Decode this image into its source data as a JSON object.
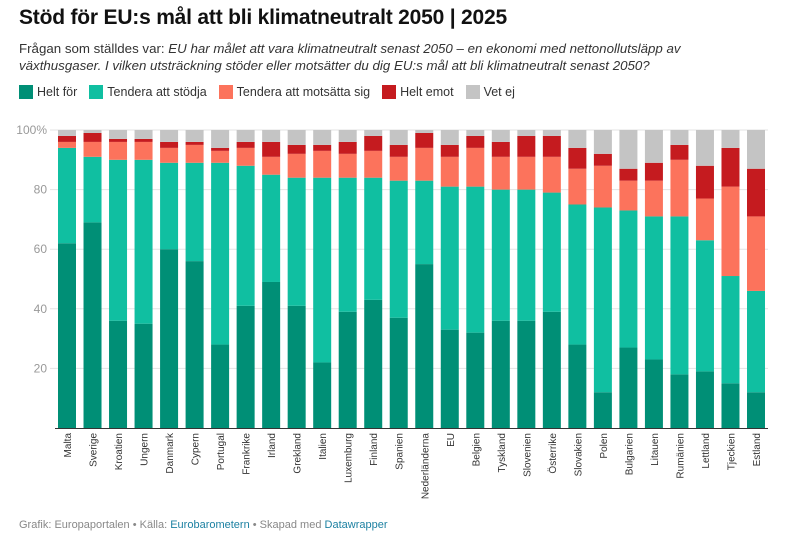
{
  "title": "Stöd för EU:s mål att bli klimatneutralt 2050 | 2025",
  "subtitle": {
    "prefix": "Frågan som ställdes var: ",
    "question": "EU har målet att vara klimatneutralt senast 2050 – en ekonomi med nettonollutsläpp av växthusgaser. I vilken utsträckning stöder eller motsätter du dig EU:s mål att bli klimatneutralt senast 2050?"
  },
  "footer": {
    "graphic": "Grafik: Europaportalen",
    "sep1": " • Källa: ",
    "source": "Eurobarometern",
    "sep2": " • Skapad med ",
    "tool": "Datawrapper"
  },
  "chart_data": {
    "type": "bar",
    "stacked": true,
    "title": "Stöd för EU:s mål att bli klimatneutralt 2050 | 2025",
    "xlabel": "",
    "ylabel": "",
    "ylim": [
      0,
      100
    ],
    "yticks": [
      20,
      40,
      60,
      80,
      100
    ],
    "ytick_labels": [
      "20",
      "40",
      "60",
      "80",
      "100%"
    ],
    "grid": true,
    "legend_position": "top-left",
    "categories": [
      "Malta",
      "Sverige",
      "Kroatien",
      "Ungern",
      "Danmark",
      "Cypern",
      "Portugal",
      "Frankrike",
      "Irland",
      "Grekland",
      "Italien",
      "Luxemburg",
      "Finland",
      "Spanien",
      "Nederländerna",
      "EU",
      "Belgien",
      "Tyskland",
      "Slovenien",
      "Österrike",
      "Slovakien",
      "Polen",
      "Bulgarien",
      "Litauen",
      "Rumänien",
      "Lettland",
      "Tjeckien",
      "Estland"
    ],
    "series": [
      {
        "name": "Helt för",
        "color": "#008f76",
        "values": [
          62,
          69,
          36,
          35,
          60,
          56,
          28,
          41,
          49,
          41,
          22,
          39,
          43,
          37,
          55,
          33,
          32,
          36,
          36,
          39,
          28,
          12,
          27,
          23,
          18,
          19,
          15,
          12
        ]
      },
      {
        "name": "Tendera att stödja",
        "color": "#10bfa1",
        "values": [
          32,
          22,
          54,
          55,
          29,
          33,
          61,
          47,
          36,
          43,
          62,
          45,
          41,
          46,
          28,
          48,
          49,
          44,
          44,
          40,
          47,
          62,
          46,
          48,
          53,
          44,
          36,
          34
        ]
      },
      {
        "name": "Tendera att motsätta sig",
        "color": "#fc735c",
        "values": [
          2,
          5,
          6,
          6,
          5,
          6,
          4,
          6,
          6,
          8,
          9,
          8,
          9,
          8,
          11,
          10,
          13,
          11,
          11,
          12,
          12,
          14,
          10,
          12,
          19,
          14,
          30,
          25
        ]
      },
      {
        "name": "Helt emot",
        "color": "#c51b1f",
        "values": [
          2,
          3,
          1,
          1,
          2,
          1,
          1,
          2,
          5,
          3,
          2,
          4,
          5,
          4,
          5,
          4,
          4,
          5,
          7,
          7,
          7,
          4,
          4,
          6,
          5,
          11,
          13,
          16
        ]
      },
      {
        "name": "Vet ej",
        "color": "#c4c4c4",
        "values": [
          2,
          1,
          3,
          3,
          4,
          4,
          6,
          4,
          4,
          5,
          5,
          4,
          2,
          5,
          1,
          5,
          2,
          4,
          2,
          2,
          6,
          8,
          13,
          11,
          5,
          12,
          6,
          13
        ]
      }
    ]
  }
}
